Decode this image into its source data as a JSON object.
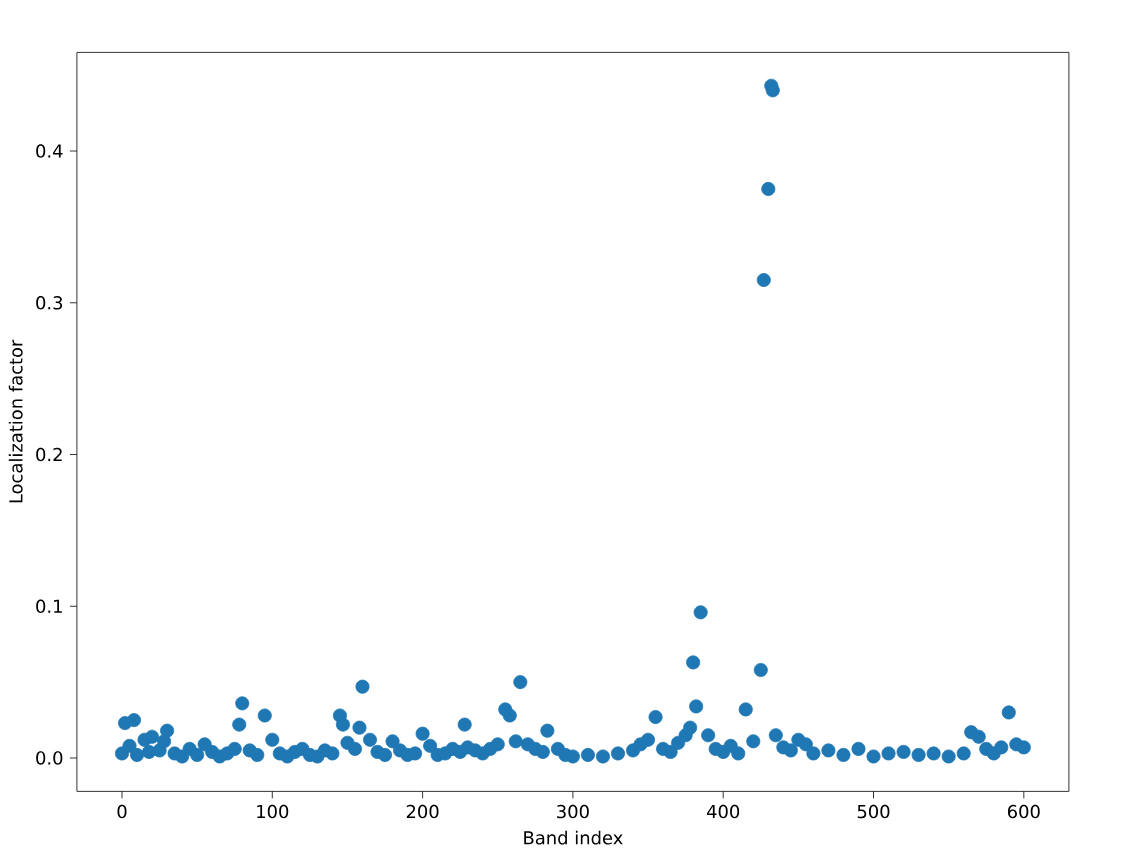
{
  "chart_data": {
    "type": "scatter",
    "xlabel": "Band index",
    "ylabel": "Localization factor",
    "xlim": [
      -30,
      630
    ],
    "ylim": [
      -0.022,
      0.465
    ],
    "xticks": [
      0,
      100,
      200,
      300,
      400,
      500,
      600
    ],
    "yticks": [
      {
        "value": 0,
        "label": "0.0"
      },
      {
        "value": 0.1,
        "label": "0.1"
      },
      {
        "value": 0.2,
        "label": "0.2"
      },
      {
        "value": 0.3,
        "label": "0.3"
      },
      {
        "value": 0.4,
        "label": "0.4"
      }
    ],
    "marker": "circle",
    "series": [
      {
        "color": "#1f77b4",
        "x": [
          0,
          2,
          5,
          8,
          10,
          15,
          18,
          20,
          25,
          28,
          30,
          35,
          40,
          45,
          50,
          55,
          60,
          65,
          70,
          75,
          78,
          80,
          85,
          90,
          95,
          100,
          105,
          110,
          115,
          120,
          125,
          130,
          135,
          140,
          145,
          147,
          150,
          155,
          158,
          160,
          165,
          170,
          175,
          180,
          185,
          190,
          195,
          200,
          205,
          210,
          215,
          220,
          225,
          228,
          230,
          235,
          240,
          245,
          250,
          255,
          258,
          262,
          265,
          270,
          275,
          280,
          283,
          290,
          295,
          300,
          310,
          320,
          330,
          340,
          345,
          350,
          355,
          360,
          365,
          370,
          375,
          378,
          380,
          382,
          385,
          390,
          395,
          400,
          405,
          410,
          415,
          420,
          425,
          427,
          430,
          432,
          433,
          435,
          440,
          445,
          450,
          455,
          460,
          470,
          480,
          490,
          500,
          510,
          520,
          530,
          540,
          550,
          560,
          565,
          570,
          575,
          580,
          585,
          590,
          595,
          600
        ],
        "values": [
          0.003,
          0.023,
          0.008,
          0.025,
          0.002,
          0.012,
          0.004,
          0.014,
          0.005,
          0.011,
          0.018,
          0.003,
          0.001,
          0.006,
          0.002,
          0.009,
          0.004,
          0.001,
          0.003,
          0.006,
          0.022,
          0.036,
          0.005,
          0.002,
          0.028,
          0.012,
          0.003,
          0.001,
          0.004,
          0.006,
          0.002,
          0.001,
          0.005,
          0.003,
          0.028,
          0.022,
          0.01,
          0.006,
          0.02,
          0.047,
          0.012,
          0.004,
          0.002,
          0.011,
          0.005,
          0.002,
          0.003,
          0.016,
          0.008,
          0.002,
          0.003,
          0.006,
          0.004,
          0.022,
          0.007,
          0.005,
          0.003,
          0.006,
          0.009,
          0.032,
          0.028,
          0.011,
          0.05,
          0.009,
          0.006,
          0.004,
          0.018,
          0.006,
          0.002,
          0.001,
          0.002,
          0.001,
          0.003,
          0.005,
          0.009,
          0.012,
          0.027,
          0.006,
          0.004,
          0.01,
          0.015,
          0.02,
          0.063,
          0.034,
          0.096,
          0.015,
          0.006,
          0.004,
          0.008,
          0.003,
          0.032,
          0.011,
          0.058,
          0.315,
          0.375,
          0.443,
          0.44,
          0.015,
          0.007,
          0.005,
          0.012,
          0.009,
          0.003,
          0.005,
          0.002,
          0.006,
          0.001,
          0.003,
          0.004,
          0.002,
          0.003,
          0.001,
          0.003,
          0.017,
          0.014,
          0.006,
          0.003,
          0.007,
          0.03,
          0.009,
          0.007
        ]
      }
    ]
  }
}
